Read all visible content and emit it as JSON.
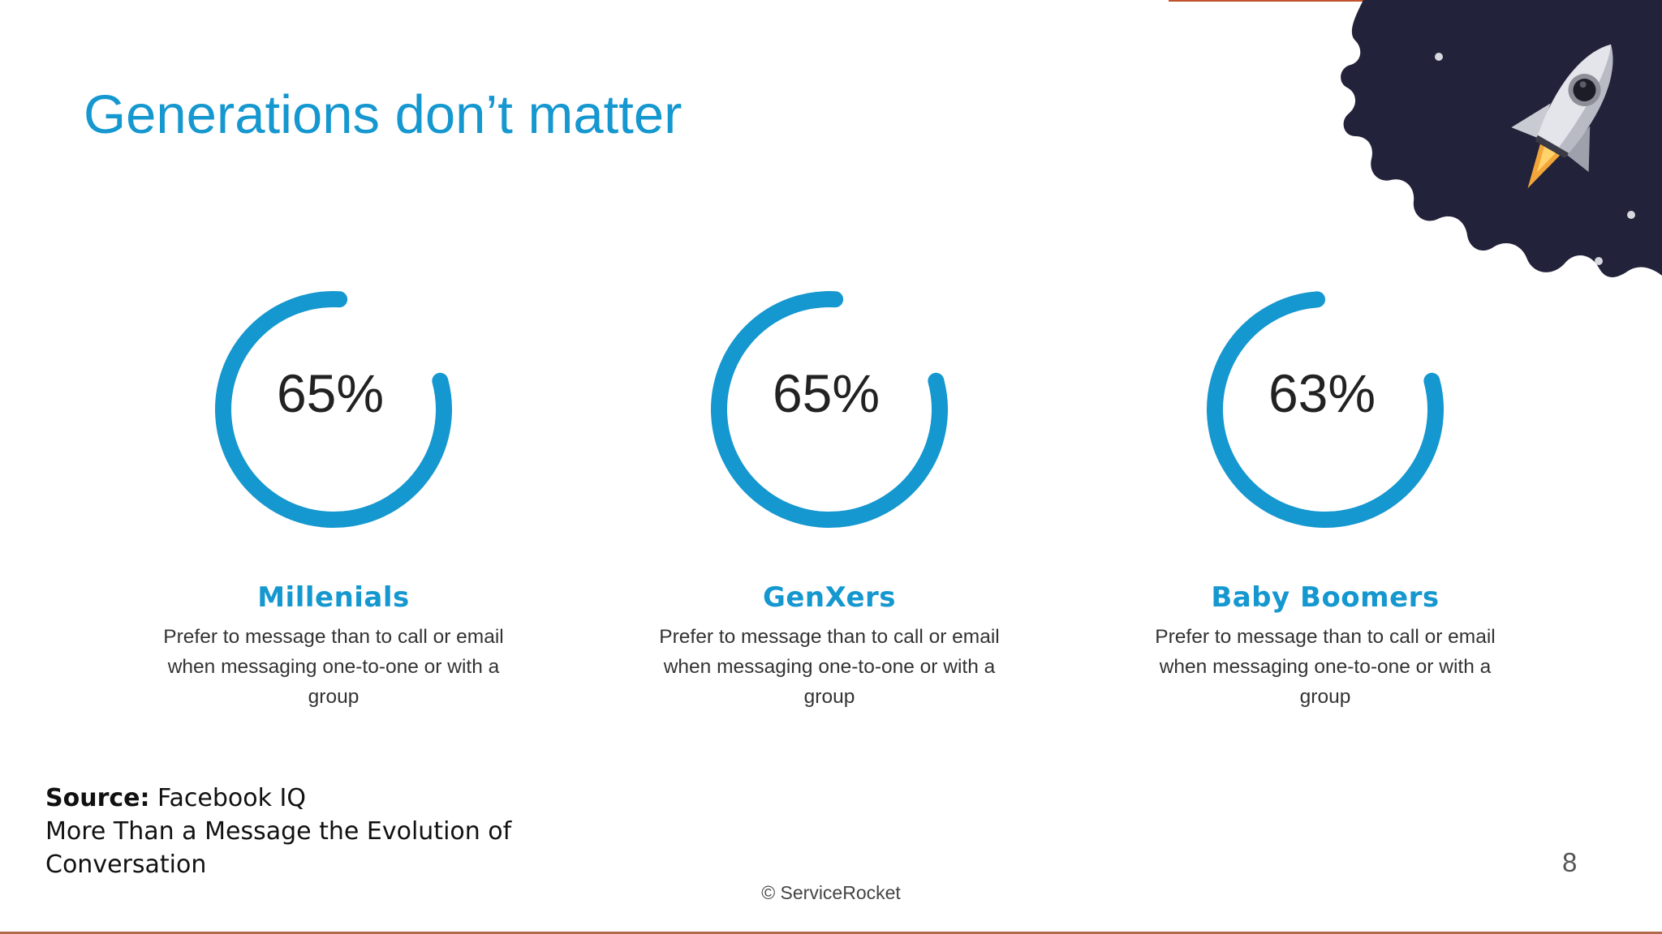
{
  "slide": {
    "title": "Generations don’t matter",
    "accent_color": "#1597cf",
    "stats": [
      {
        "value": "65%",
        "percent": 65,
        "label": "Millenials",
        "description": "Prefer to message than to call or email when messaging one-to-one or with a group"
      },
      {
        "value": "65%",
        "percent": 65,
        "label": "GenXers",
        "description": "Prefer to message than to call or email when messaging one-to-one or with a group"
      },
      {
        "value": "63%",
        "percent": 63,
        "label": "Baby Boomers",
        "description": "Prefer to message than to call or email when messaging one-to-one or with a group"
      }
    ],
    "source": {
      "label": "Source:",
      "name": "Facebook IQ",
      "line2": "More Than a Message the Evolution of",
      "line3": "Conversation"
    },
    "page_number": "8",
    "copyright": "© ServiceRocket",
    "decoration": {
      "icon": "rocket-icon",
      "background_color": "#22223a"
    }
  }
}
